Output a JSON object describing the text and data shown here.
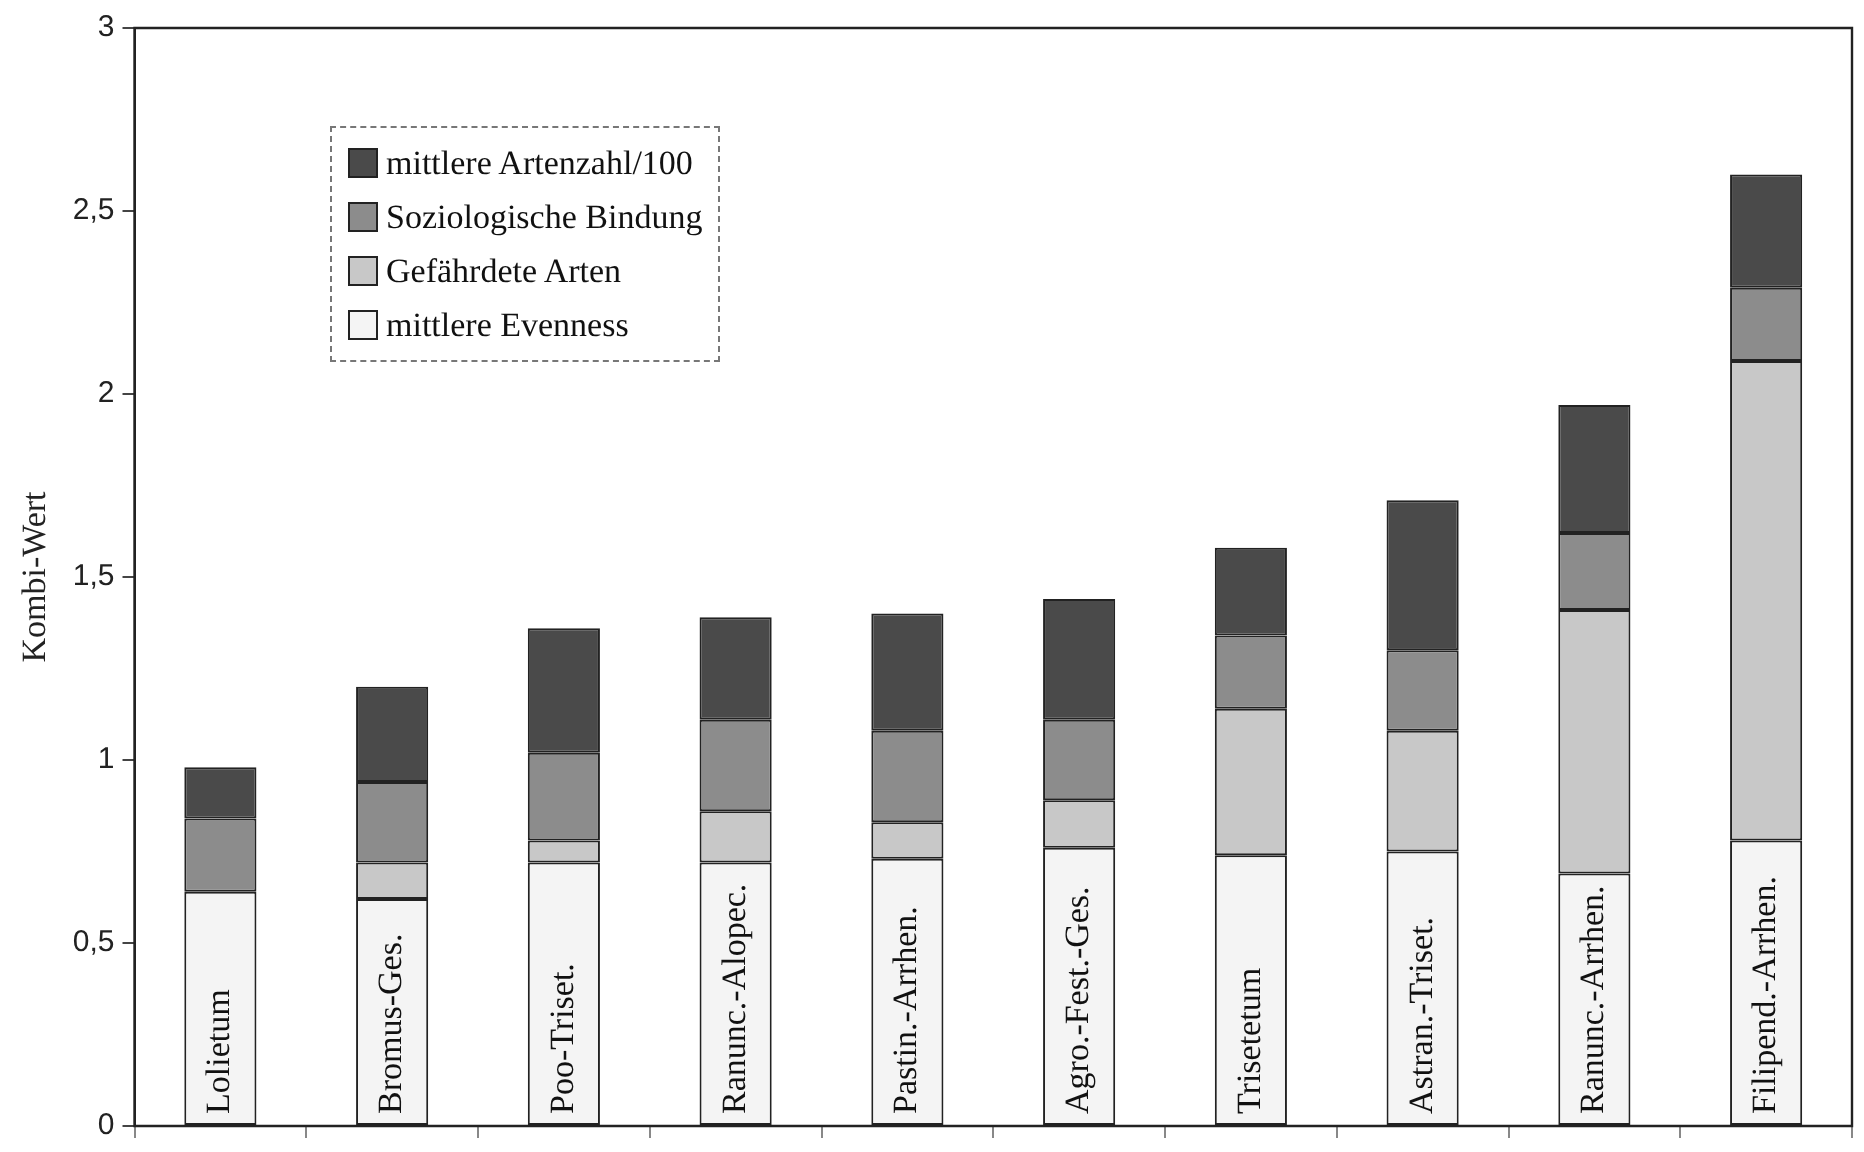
{
  "chart_data": {
    "type": "bar",
    "stacked": true,
    "ylabel": "Kombi-Wert",
    "categories": [
      "Lolietum",
      "Bromus-Ges.",
      "Poo-Triset.",
      "Ranunc.-Alopec.",
      "Pastin.-Arrhen.",
      "Agro.-Fest.-Ges.",
      "Trisetetum",
      "Astran.-Triset.",
      "Ranunc.-Arrhen.",
      "Filipend.-Arrhen."
    ],
    "series": [
      {
        "name": "mittlere Evenness",
        "color": "#f4f4f4",
        "values": [
          0.64,
          0.62,
          0.72,
          0.72,
          0.73,
          0.76,
          0.74,
          0.75,
          0.69,
          0.78
        ]
      },
      {
        "name": "Gefährdete Arten",
        "color": "#c8c8c8",
        "values": [
          0,
          0.1,
          0.06,
          0.14,
          0.1,
          0.13,
          0.4,
          0.33,
          0.72,
          1.31
        ]
      },
      {
        "name": "Soziologische Bindung",
        "color": "#8c8c8c",
        "values": [
          0.2,
          0.22,
          0.24,
          0.25,
          0.25,
          0.22,
          0.2,
          0.22,
          0.21,
          0.2
        ]
      },
      {
        "name": "mittlere Artenzahl/100",
        "color": "#4a4a4a",
        "values": [
          0.14,
          0.26,
          0.34,
          0.28,
          0.32,
          0.33,
          0.24,
          0.41,
          0.35,
          0.31
        ]
      }
    ],
    "ylim": [
      0,
      3
    ],
    "yticks": [
      0,
      {
        "value": 0.5,
        "label": "0,5"
      },
      1,
      {
        "value": 1.5,
        "label": "1,5"
      },
      2,
      {
        "value": 2.5,
        "label": "2,5"
      },
      3
    ],
    "grid": false,
    "legend": "top left"
  }
}
